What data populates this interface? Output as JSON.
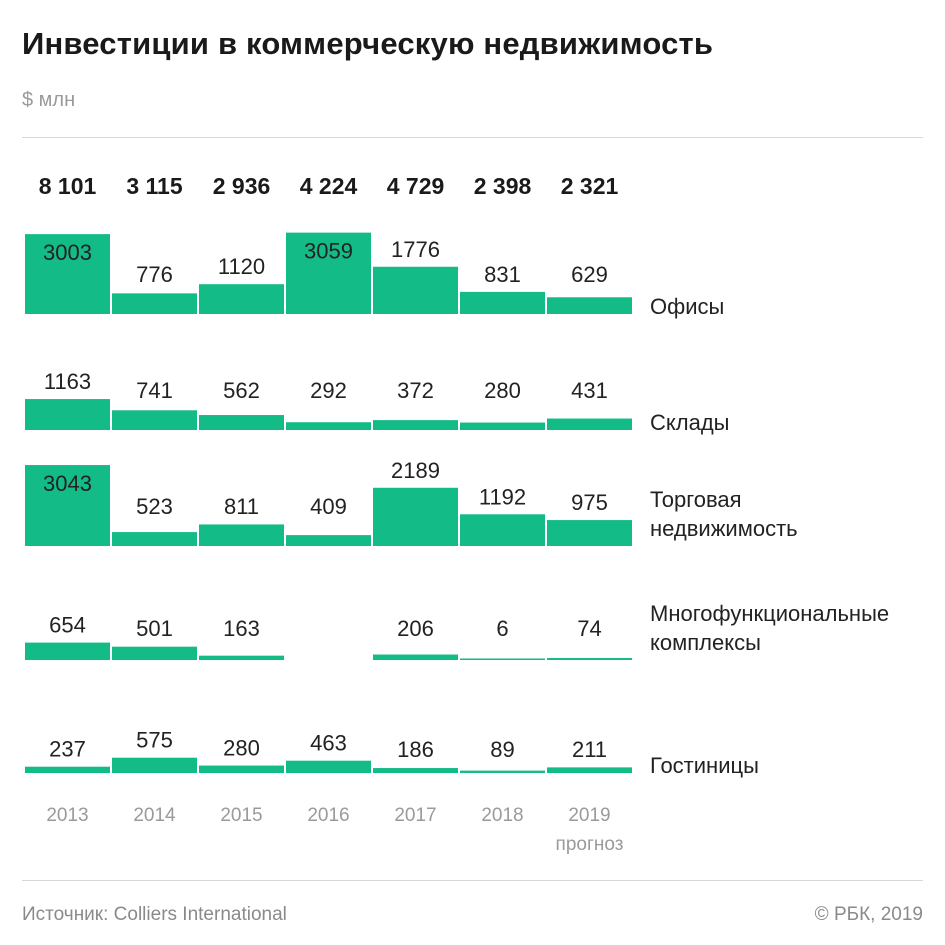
{
  "title": "Инвестиции в коммерческую недвижимость",
  "unit": "$ млн",
  "source": "Источник: Colliers International",
  "copyright": "© РБК, 2019",
  "colors": {
    "bar": "#13bb86",
    "text": "#222222",
    "muted": "#9a9a9a"
  },
  "chart_data": {
    "type": "bar",
    "categories": [
      "2013",
      "2014",
      "2015",
      "2016",
      "2017",
      "2018",
      "2019"
    ],
    "category_note": {
      "2019": "прогноз"
    },
    "totals": [
      "8 101",
      "3 115",
      "2 936",
      "4 224",
      "4 729",
      "2 398",
      "2 321"
    ],
    "series": [
      {
        "name": [
          "Офисы"
        ],
        "values": [
          3003,
          776,
          1120,
          3059,
          1776,
          831,
          629
        ]
      },
      {
        "name": [
          "Склады"
        ],
        "values": [
          1163,
          741,
          562,
          292,
          372,
          280,
          431
        ]
      },
      {
        "name": [
          "Торговая",
          "недвижимость"
        ],
        "values": [
          3043,
          523,
          811,
          409,
          2189,
          1192,
          975
        ]
      },
      {
        "name": [
          "Многофункциональные",
          "комплексы"
        ],
        "values": [
          654,
          501,
          163,
          null,
          206,
          6,
          74
        ]
      },
      {
        "name": [
          "Гостиницы"
        ],
        "values": [
          237,
          575,
          280,
          463,
          186,
          89,
          211
        ]
      }
    ]
  }
}
